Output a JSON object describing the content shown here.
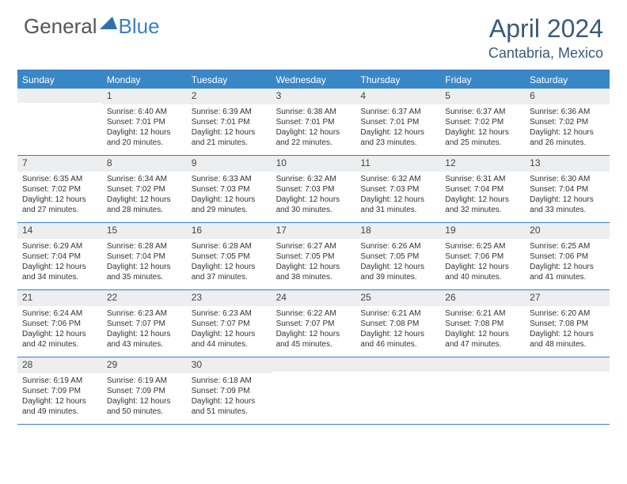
{
  "brand": {
    "general": "General",
    "blue": "Blue"
  },
  "title": "April 2024",
  "location": "Cantabria, Mexico",
  "colors": {
    "header_bar": "#3a87c7",
    "border": "#3a7fc4",
    "daynum_bg": "#eceeef",
    "title_color": "#3a5a78"
  },
  "weekdays": [
    "Sunday",
    "Monday",
    "Tuesday",
    "Wednesday",
    "Thursday",
    "Friday",
    "Saturday"
  ],
  "weeks": [
    [
      null,
      {
        "n": "1",
        "rise": "Sunrise: 6:40 AM",
        "set": "Sunset: 7:01 PM",
        "d1": "Daylight: 12 hours",
        "d2": "and 20 minutes."
      },
      {
        "n": "2",
        "rise": "Sunrise: 6:39 AM",
        "set": "Sunset: 7:01 PM",
        "d1": "Daylight: 12 hours",
        "d2": "and 21 minutes."
      },
      {
        "n": "3",
        "rise": "Sunrise: 6:38 AM",
        "set": "Sunset: 7:01 PM",
        "d1": "Daylight: 12 hours",
        "d2": "and 22 minutes."
      },
      {
        "n": "4",
        "rise": "Sunrise: 6:37 AM",
        "set": "Sunset: 7:01 PM",
        "d1": "Daylight: 12 hours",
        "d2": "and 23 minutes."
      },
      {
        "n": "5",
        "rise": "Sunrise: 6:37 AM",
        "set": "Sunset: 7:02 PM",
        "d1": "Daylight: 12 hours",
        "d2": "and 25 minutes."
      },
      {
        "n": "6",
        "rise": "Sunrise: 6:36 AM",
        "set": "Sunset: 7:02 PM",
        "d1": "Daylight: 12 hours",
        "d2": "and 26 minutes."
      }
    ],
    [
      {
        "n": "7",
        "rise": "Sunrise: 6:35 AM",
        "set": "Sunset: 7:02 PM",
        "d1": "Daylight: 12 hours",
        "d2": "and 27 minutes."
      },
      {
        "n": "8",
        "rise": "Sunrise: 6:34 AM",
        "set": "Sunset: 7:02 PM",
        "d1": "Daylight: 12 hours",
        "d2": "and 28 minutes."
      },
      {
        "n": "9",
        "rise": "Sunrise: 6:33 AM",
        "set": "Sunset: 7:03 PM",
        "d1": "Daylight: 12 hours",
        "d2": "and 29 minutes."
      },
      {
        "n": "10",
        "rise": "Sunrise: 6:32 AM",
        "set": "Sunset: 7:03 PM",
        "d1": "Daylight: 12 hours",
        "d2": "and 30 minutes."
      },
      {
        "n": "11",
        "rise": "Sunrise: 6:32 AM",
        "set": "Sunset: 7:03 PM",
        "d1": "Daylight: 12 hours",
        "d2": "and 31 minutes."
      },
      {
        "n": "12",
        "rise": "Sunrise: 6:31 AM",
        "set": "Sunset: 7:04 PM",
        "d1": "Daylight: 12 hours",
        "d2": "and 32 minutes."
      },
      {
        "n": "13",
        "rise": "Sunrise: 6:30 AM",
        "set": "Sunset: 7:04 PM",
        "d1": "Daylight: 12 hours",
        "d2": "and 33 minutes."
      }
    ],
    [
      {
        "n": "14",
        "rise": "Sunrise: 6:29 AM",
        "set": "Sunset: 7:04 PM",
        "d1": "Daylight: 12 hours",
        "d2": "and 34 minutes."
      },
      {
        "n": "15",
        "rise": "Sunrise: 6:28 AM",
        "set": "Sunset: 7:04 PM",
        "d1": "Daylight: 12 hours",
        "d2": "and 35 minutes."
      },
      {
        "n": "16",
        "rise": "Sunrise: 6:28 AM",
        "set": "Sunset: 7:05 PM",
        "d1": "Daylight: 12 hours",
        "d2": "and 37 minutes."
      },
      {
        "n": "17",
        "rise": "Sunrise: 6:27 AM",
        "set": "Sunset: 7:05 PM",
        "d1": "Daylight: 12 hours",
        "d2": "and 38 minutes."
      },
      {
        "n": "18",
        "rise": "Sunrise: 6:26 AM",
        "set": "Sunset: 7:05 PM",
        "d1": "Daylight: 12 hours",
        "d2": "and 39 minutes."
      },
      {
        "n": "19",
        "rise": "Sunrise: 6:25 AM",
        "set": "Sunset: 7:06 PM",
        "d1": "Daylight: 12 hours",
        "d2": "and 40 minutes."
      },
      {
        "n": "20",
        "rise": "Sunrise: 6:25 AM",
        "set": "Sunset: 7:06 PM",
        "d1": "Daylight: 12 hours",
        "d2": "and 41 minutes."
      }
    ],
    [
      {
        "n": "21",
        "rise": "Sunrise: 6:24 AM",
        "set": "Sunset: 7:06 PM",
        "d1": "Daylight: 12 hours",
        "d2": "and 42 minutes."
      },
      {
        "n": "22",
        "rise": "Sunrise: 6:23 AM",
        "set": "Sunset: 7:07 PM",
        "d1": "Daylight: 12 hours",
        "d2": "and 43 minutes."
      },
      {
        "n": "23",
        "rise": "Sunrise: 6:23 AM",
        "set": "Sunset: 7:07 PM",
        "d1": "Daylight: 12 hours",
        "d2": "and 44 minutes."
      },
      {
        "n": "24",
        "rise": "Sunrise: 6:22 AM",
        "set": "Sunset: 7:07 PM",
        "d1": "Daylight: 12 hours",
        "d2": "and 45 minutes."
      },
      {
        "n": "25",
        "rise": "Sunrise: 6:21 AM",
        "set": "Sunset: 7:08 PM",
        "d1": "Daylight: 12 hours",
        "d2": "and 46 minutes."
      },
      {
        "n": "26",
        "rise": "Sunrise: 6:21 AM",
        "set": "Sunset: 7:08 PM",
        "d1": "Daylight: 12 hours",
        "d2": "and 47 minutes."
      },
      {
        "n": "27",
        "rise": "Sunrise: 6:20 AM",
        "set": "Sunset: 7:08 PM",
        "d1": "Daylight: 12 hours",
        "d2": "and 48 minutes."
      }
    ],
    [
      {
        "n": "28",
        "rise": "Sunrise: 6:19 AM",
        "set": "Sunset: 7:09 PM",
        "d1": "Daylight: 12 hours",
        "d2": "and 49 minutes."
      },
      {
        "n": "29",
        "rise": "Sunrise: 6:19 AM",
        "set": "Sunset: 7:09 PM",
        "d1": "Daylight: 12 hours",
        "d2": "and 50 minutes."
      },
      {
        "n": "30",
        "rise": "Sunrise: 6:18 AM",
        "set": "Sunset: 7:09 PM",
        "d1": "Daylight: 12 hours",
        "d2": "and 51 minutes."
      },
      null,
      null,
      null,
      null
    ]
  ]
}
